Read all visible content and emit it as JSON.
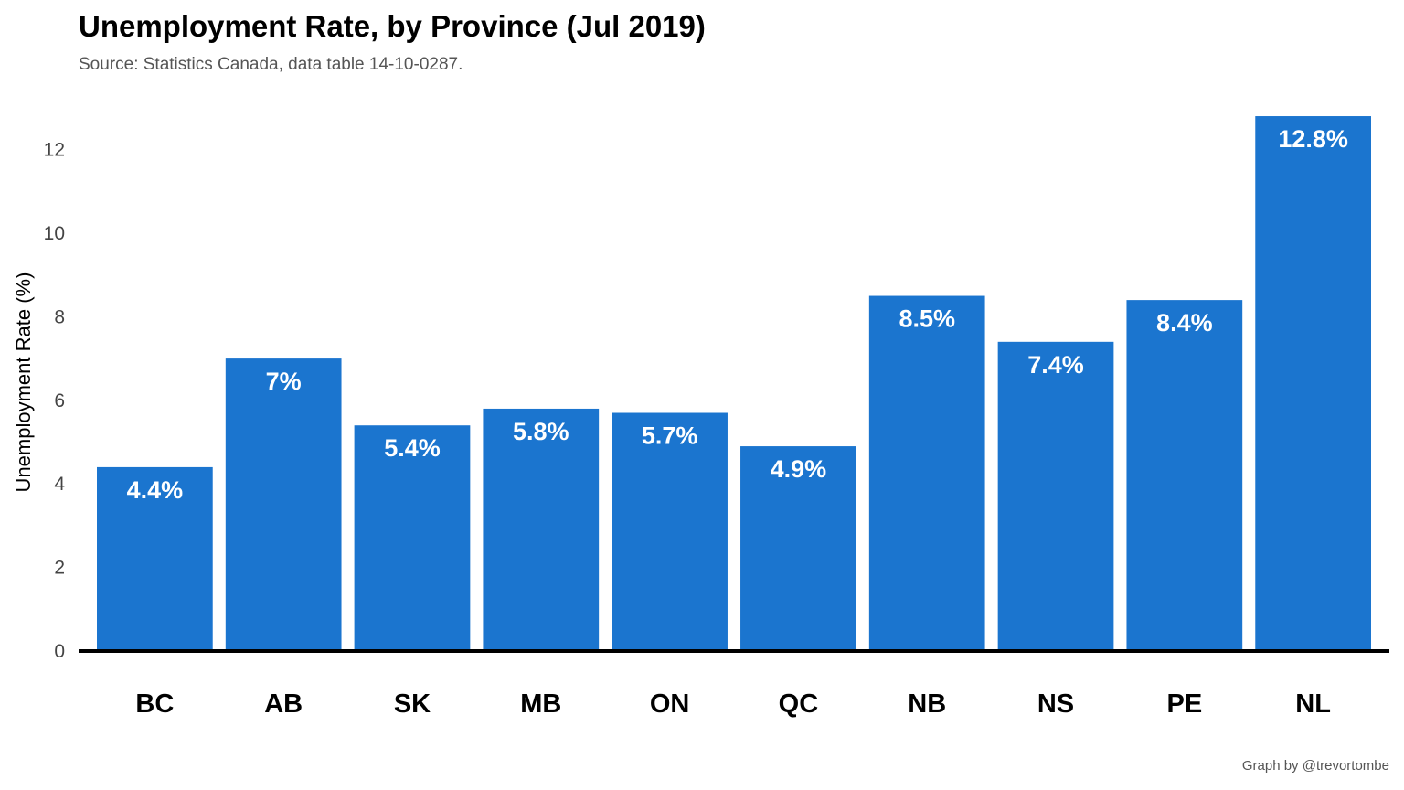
{
  "chart_data": {
    "type": "bar",
    "title": "Unemployment Rate, by Province (Jul 2019)",
    "subtitle": "Source: Statistics Canada, data table 14-10-0287.",
    "caption": "Graph by @trevortombe",
    "xlabel": "",
    "ylabel": "Unemployment Rate (%)",
    "categories": [
      "BC",
      "AB",
      "SK",
      "MB",
      "ON",
      "QC",
      "NB",
      "NS",
      "PE",
      "NL"
    ],
    "values": [
      4.4,
      7.0,
      5.4,
      5.8,
      5.7,
      4.9,
      8.5,
      7.4,
      8.4,
      12.8
    ],
    "data_labels": [
      "4.4%",
      "7%",
      "5.4%",
      "5.8%",
      "5.7%",
      "4.9%",
      "8.5%",
      "7.4%",
      "8.4%",
      "12.8%"
    ],
    "yticks": [
      0,
      2,
      4,
      6,
      8,
      10,
      12
    ],
    "ylim": [
      0,
      13.2
    ],
    "grid": false,
    "legend": "none",
    "bar_color": "#1b75cf",
    "baseline_color": "#000000"
  }
}
